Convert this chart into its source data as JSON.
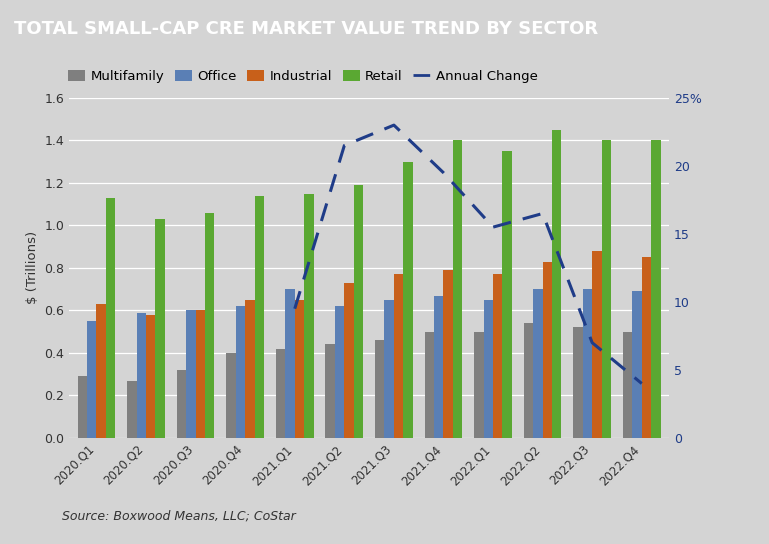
{
  "title": "TOTAL SMALL-CAP CRE MARKET VALUE TREND BY SECTOR",
  "title_bg_color": "#4a4a4a",
  "title_text_color": "#ffffff",
  "bg_color": "#d4d4d4",
  "plot_bg_color": "#d4d4d4",
  "categories": [
    "2020.Q1",
    "2020.Q2",
    "2020.Q3",
    "2020.Q4",
    "2021.Q1",
    "2021.Q2",
    "2021.Q3",
    "2021.Q4",
    "2022.Q1",
    "2022.Q2",
    "2022.Q3",
    "2022.Q4"
  ],
  "multifamily": [
    0.29,
    0.27,
    0.32,
    0.4,
    0.42,
    0.44,
    0.46,
    0.5,
    0.5,
    0.54,
    0.52,
    0.5
  ],
  "office": [
    0.55,
    0.59,
    0.6,
    0.62,
    0.7,
    0.62,
    0.65,
    0.67,
    0.65,
    0.7,
    0.7,
    0.69
  ],
  "industrial": [
    0.63,
    0.58,
    0.6,
    0.65,
    0.65,
    0.73,
    0.77,
    0.79,
    0.77,
    0.83,
    0.88,
    0.85
  ],
  "retail": [
    1.13,
    1.03,
    1.06,
    1.14,
    1.15,
    1.19,
    1.3,
    1.4,
    1.35,
    1.45,
    1.4,
    1.4
  ],
  "annual_change_x": [
    4,
    5,
    6,
    7,
    8,
    9,
    10,
    11
  ],
  "annual_change_y": [
    9.5,
    21.5,
    23.0,
    19.5,
    15.5,
    16.5,
    7.0,
    4.0
  ],
  "multifamily_color": "#7f7f7f",
  "office_color": "#5a7fb5",
  "industrial_color": "#c8601a",
  "retail_color": "#5aa832",
  "annual_change_color": "#1f3c88",
  "ylabel_left": "$ (Trillions)",
  "ylim_left": [
    0,
    1.6
  ],
  "ylim_right": [
    0,
    25
  ],
  "yticks_left": [
    0.0,
    0.2,
    0.4,
    0.6,
    0.8,
    1.0,
    1.2,
    1.4,
    1.6
  ],
  "ytick_labels_left": [
    "0.0",
    "0.2",
    "0.4",
    "0.6",
    "0.8",
    "1.0",
    "1.2",
    "1.4",
    "1.6"
  ],
  "yticks_right": [
    0,
    5,
    10,
    15,
    20,
    25
  ],
  "ytick_labels_right": [
    "0",
    "5",
    "10",
    "15",
    "20",
    "25%"
  ],
  "source_text": "Source: Boxwood Means, LLC; CoStar",
  "bar_width": 0.19,
  "legend_labels": [
    "Multifamily",
    "Office",
    "Industrial",
    "Retail",
    "Annual Change"
  ]
}
